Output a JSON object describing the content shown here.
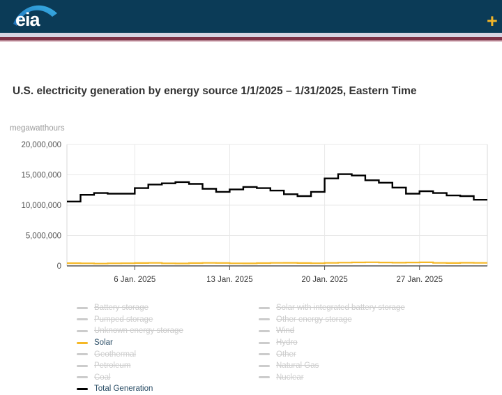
{
  "header": {
    "logo_text": "eia",
    "add_button_label": "+"
  },
  "page": {
    "title": "U.S. electricity generation by energy source 1/1/2025 – 1/31/2025, Eastern Time",
    "unit_label": "megawatthours"
  },
  "colors": {
    "header_bg": "#0B3B57",
    "logo_swoosh_light": "#3AB1E6",
    "logo_swoosh_dark": "#1D6FB8",
    "stripe_lavender": "#D7D4E2",
    "stripe_maroon": "#7D3146",
    "stripe_pink": "#E3C8CF",
    "accent_gold": "#F0B428",
    "solar_line": "#F5B826",
    "total_generation_line": "#000000",
    "legend_disabled": "#CCCCCC",
    "legend_active_text": "#2A4D66",
    "grid_line": "#E8E8E8",
    "plot_border": "#D8D8D8",
    "axis_line": "#555555",
    "axis_label": "#555555",
    "x_label": "#3A3A3A"
  },
  "chart_data": {
    "type": "line",
    "step": true,
    "title": "U.S. electricity generation by energy source 1/1/2025 – 1/31/2025, Eastern Time",
    "xlabel": "",
    "ylabel": "megawatthours",
    "ylim": [
      0,
      20000000
    ],
    "ytick_values": [
      0,
      5000000,
      10000000,
      15000000,
      20000000
    ],
    "ytick_labels": [
      "0",
      "5,000,000",
      "10,000,000",
      "15,000,000",
      "20,000,000"
    ],
    "xtick_days": [
      6,
      13,
      20,
      27
    ],
    "xtick_labels": [
      "6 Jan. 2025",
      "13 Jan. 2025",
      "20 Jan. 2025",
      "27 Jan. 2025"
    ],
    "x_range": [
      "2025-01-01",
      "2025-01-31"
    ],
    "grid": true,
    "legend_position": "bottom",
    "categories": [
      "2025-01-01",
      "2025-01-02",
      "2025-01-03",
      "2025-01-04",
      "2025-01-05",
      "2025-01-06",
      "2025-01-07",
      "2025-01-08",
      "2025-01-09",
      "2025-01-10",
      "2025-01-11",
      "2025-01-12",
      "2025-01-13",
      "2025-01-14",
      "2025-01-15",
      "2025-01-16",
      "2025-01-17",
      "2025-01-18",
      "2025-01-19",
      "2025-01-20",
      "2025-01-21",
      "2025-01-22",
      "2025-01-23",
      "2025-01-24",
      "2025-01-25",
      "2025-01-26",
      "2025-01-27",
      "2025-01-28",
      "2025-01-29",
      "2025-01-30",
      "2025-01-31"
    ],
    "series": [
      {
        "name": "Solar",
        "color": "#F5B826",
        "visible": true,
        "values": [
          450000,
          430000,
          380000,
          420000,
          440000,
          470000,
          500000,
          430000,
          400000,
          460000,
          500000,
          480000,
          430000,
          410000,
          460000,
          490000,
          510000,
          470000,
          440000,
          490000,
          540000,
          570000,
          600000,
          560000,
          530000,
          560000,
          590000,
          500000,
          470000,
          520000,
          500000
        ]
      },
      {
        "name": "Total Generation",
        "color": "#000000",
        "visible": true,
        "values": [
          10600000,
          11700000,
          12000000,
          11900000,
          11900000,
          12800000,
          13400000,
          13600000,
          13800000,
          13500000,
          12700000,
          12200000,
          12600000,
          13000000,
          12800000,
          12400000,
          11800000,
          11500000,
          12200000,
          14400000,
          15100000,
          14900000,
          14100000,
          13700000,
          12900000,
          11900000,
          12300000,
          12000000,
          11600000,
          11500000,
          10900000
        ]
      }
    ]
  },
  "legend": {
    "columns": [
      [
        {
          "label": "Battery storage",
          "visible": false
        },
        {
          "label": "Pumped storage",
          "visible": false
        },
        {
          "label": "Unknown energy storage",
          "visible": false
        },
        {
          "label": "Solar",
          "visible": true,
          "color": "#F5B826"
        },
        {
          "label": "Geothermal",
          "visible": false
        },
        {
          "label": "Petroleum",
          "visible": false
        },
        {
          "label": "Coal",
          "visible": false
        },
        {
          "label": "Total Generation",
          "visible": true,
          "color": "#000000"
        }
      ],
      [
        {
          "label": "Solar with integrated battery storage",
          "visible": false
        },
        {
          "label": "Other energy storage",
          "visible": false
        },
        {
          "label": "Wind",
          "visible": false
        },
        {
          "label": "Hydro",
          "visible": false
        },
        {
          "label": "Other",
          "visible": false
        },
        {
          "label": "Natural Gas",
          "visible": false
        },
        {
          "label": "Nuclear",
          "visible": false
        }
      ]
    ]
  }
}
